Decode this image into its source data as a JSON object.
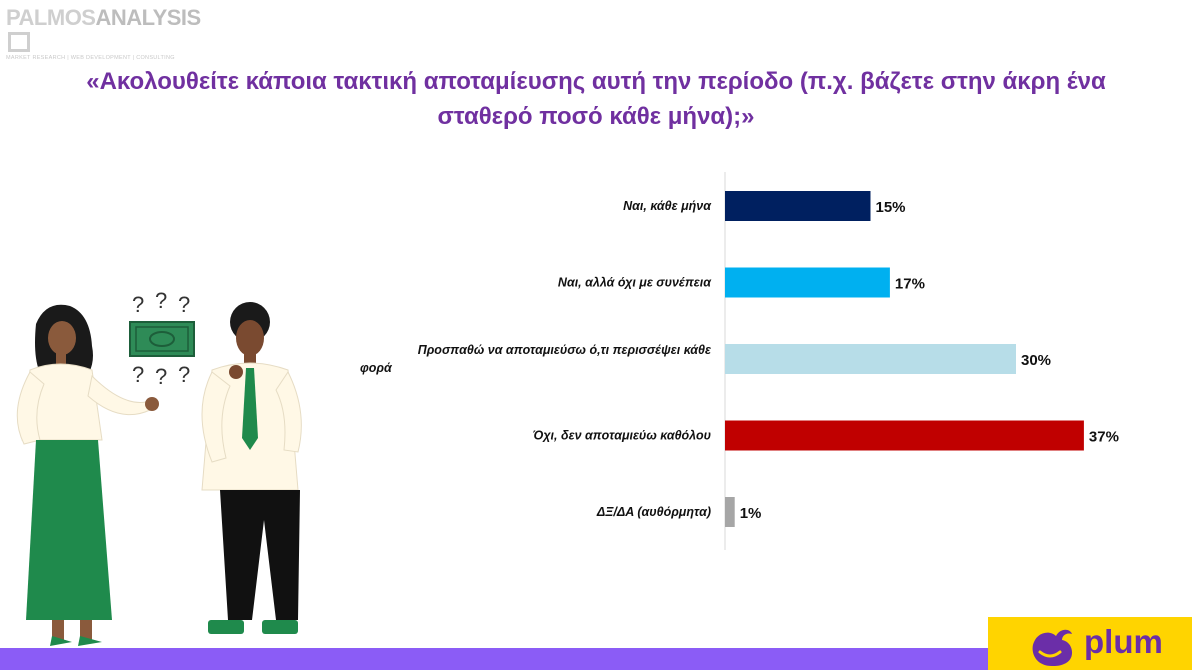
{
  "logo": {
    "name_part1": "PALMOS",
    "name_part2": "ANALYSIS",
    "tagline": "MARKET RESEARCH | WEB DEVELOPMENT | CONSULTING"
  },
  "title": "«Ακολουθείτε κάποια τακτική αποταμίευσης αυτή την περίοδο (π.χ. βάζετε στην άκρη ένα σταθερό ποσό κάθε μήνα);»",
  "chart_data": {
    "type": "bar",
    "orientation": "horizontal",
    "categories": [
      "Ναι, κάθε μήνα",
      "Ναι, αλλά όχι με συνέπεια",
      "Προσπαθώ να αποταμιεύσω ό,τι περισσέψει κάθε φορά",
      "Όχι, δεν αποταμιεύω καθόλου",
      "ΔΞ/ΔΑ (αυθόρμητα)"
    ],
    "values": [
      15,
      17,
      30,
      37,
      1
    ],
    "value_labels": [
      "15%",
      "17%",
      "30%",
      "37%",
      "1%"
    ],
    "colors": [
      "#002060",
      "#00b0f0",
      "#b7dde8",
      "#c00000",
      "#a6a6a6"
    ],
    "xlim": [
      0,
      100
    ],
    "grid": false,
    "legend": "none"
  },
  "brand": {
    "name": "plum",
    "accent": "#7030a0",
    "yellow": "#ffd400",
    "bar_color": "#8b5cf6"
  }
}
